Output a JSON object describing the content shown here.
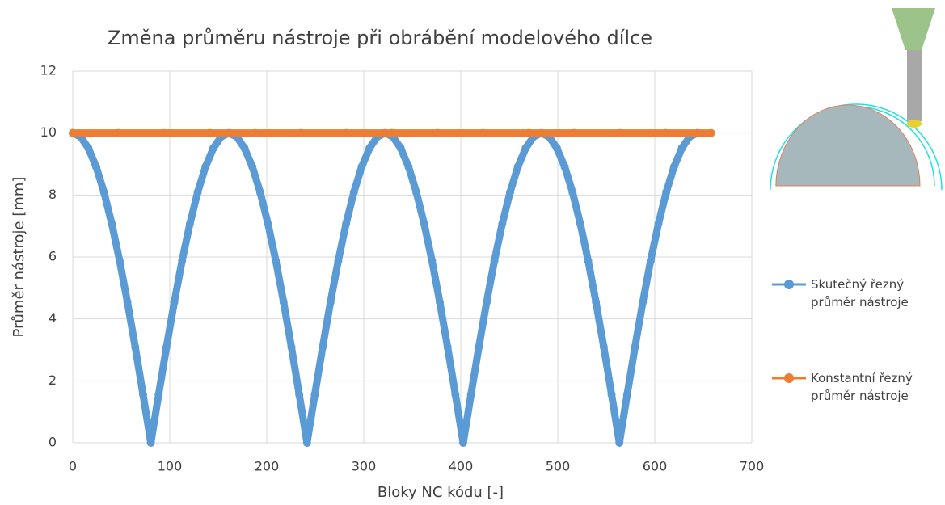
{
  "chart_data": {
    "type": "line",
    "title": "Změna průměru nástroje při obrábění modelového dílce",
    "x_label": "Bloky NC kódu [-]",
    "y_label": "Průměr nástroje [mm]",
    "xlim": [
      0,
      700
    ],
    "xticks": [
      0,
      100,
      200,
      300,
      400,
      500,
      600,
      700
    ],
    "ylim": [
      0,
      12
    ],
    "yticks": [
      0,
      2,
      4,
      6,
      8,
      10,
      12
    ],
    "grid": true,
    "legend": "right",
    "series": [
      {
        "name": "Skutečný řezný průměr nástroje",
        "color": "#5b9bd5",
        "x": [
          0,
          8.05,
          16.1,
          24.15,
          32.2,
          40.25,
          48.3,
          56.35,
          64.4,
          72.45,
          80.5,
          88.55,
          96.6,
          104.65,
          112.7,
          120.75,
          128.8,
          136.85,
          144.9,
          152.95,
          161,
          169.05,
          177.1,
          185.15,
          193.2,
          201.25,
          209.3,
          217.35,
          225.4,
          233.45,
          241.5,
          249.55,
          257.6,
          265.65,
          273.7,
          281.75,
          289.8,
          297.85,
          305.9,
          313.95,
          322,
          330.05,
          338.1,
          346.15,
          354.2,
          362.25,
          370.3,
          378.35,
          386.4,
          394.45,
          402.5,
          410.55,
          418.6,
          426.65,
          434.7,
          442.75,
          450.8,
          458.85,
          466.9,
          474.95,
          483,
          491.05,
          499.1,
          507.15,
          515.2,
          523.25,
          531.3,
          539.35,
          547.4,
          555.45,
          563.5,
          571.55,
          579.6,
          587.65,
          595.7,
          603.75,
          611.8,
          619.85,
          627.9,
          635.95,
          644
        ],
        "values": [
          10,
          9.88,
          9.51,
          8.91,
          8.09,
          7.07,
          5.88,
          4.54,
          3.09,
          1.56,
          0,
          1.56,
          3.09,
          4.54,
          5.88,
          7.07,
          8.09,
          8.91,
          9.51,
          9.88,
          10,
          9.88,
          9.51,
          8.91,
          8.09,
          7.07,
          5.88,
          4.54,
          3.09,
          1.56,
          0,
          1.56,
          3.09,
          4.54,
          5.88,
          7.07,
          8.09,
          8.91,
          9.51,
          9.88,
          10,
          9.88,
          9.51,
          8.91,
          8.09,
          7.07,
          5.88,
          4.54,
          3.09,
          1.56,
          0,
          1.56,
          3.09,
          4.54,
          5.88,
          7.07,
          8.09,
          8.91,
          9.51,
          9.88,
          10,
          9.88,
          9.51,
          8.91,
          8.09,
          7.07,
          5.88,
          4.54,
          3.09,
          1.56,
          0,
          1.56,
          3.09,
          4.54,
          5.88,
          7.07,
          8.09,
          8.91,
          9.51,
          9.88,
          10
        ]
      },
      {
        "name": "Konstantní řezný průměr nástroje",
        "color": "#ed7d31",
        "x": [
          0,
          47,
          94,
          141,
          188,
          235,
          282,
          329,
          376,
          423,
          470,
          517,
          564,
          611,
          658
        ],
        "values": [
          10,
          10,
          10,
          10,
          10,
          10,
          10,
          10,
          10,
          10,
          10,
          10,
          10,
          10,
          10
        ]
      }
    ]
  }
}
